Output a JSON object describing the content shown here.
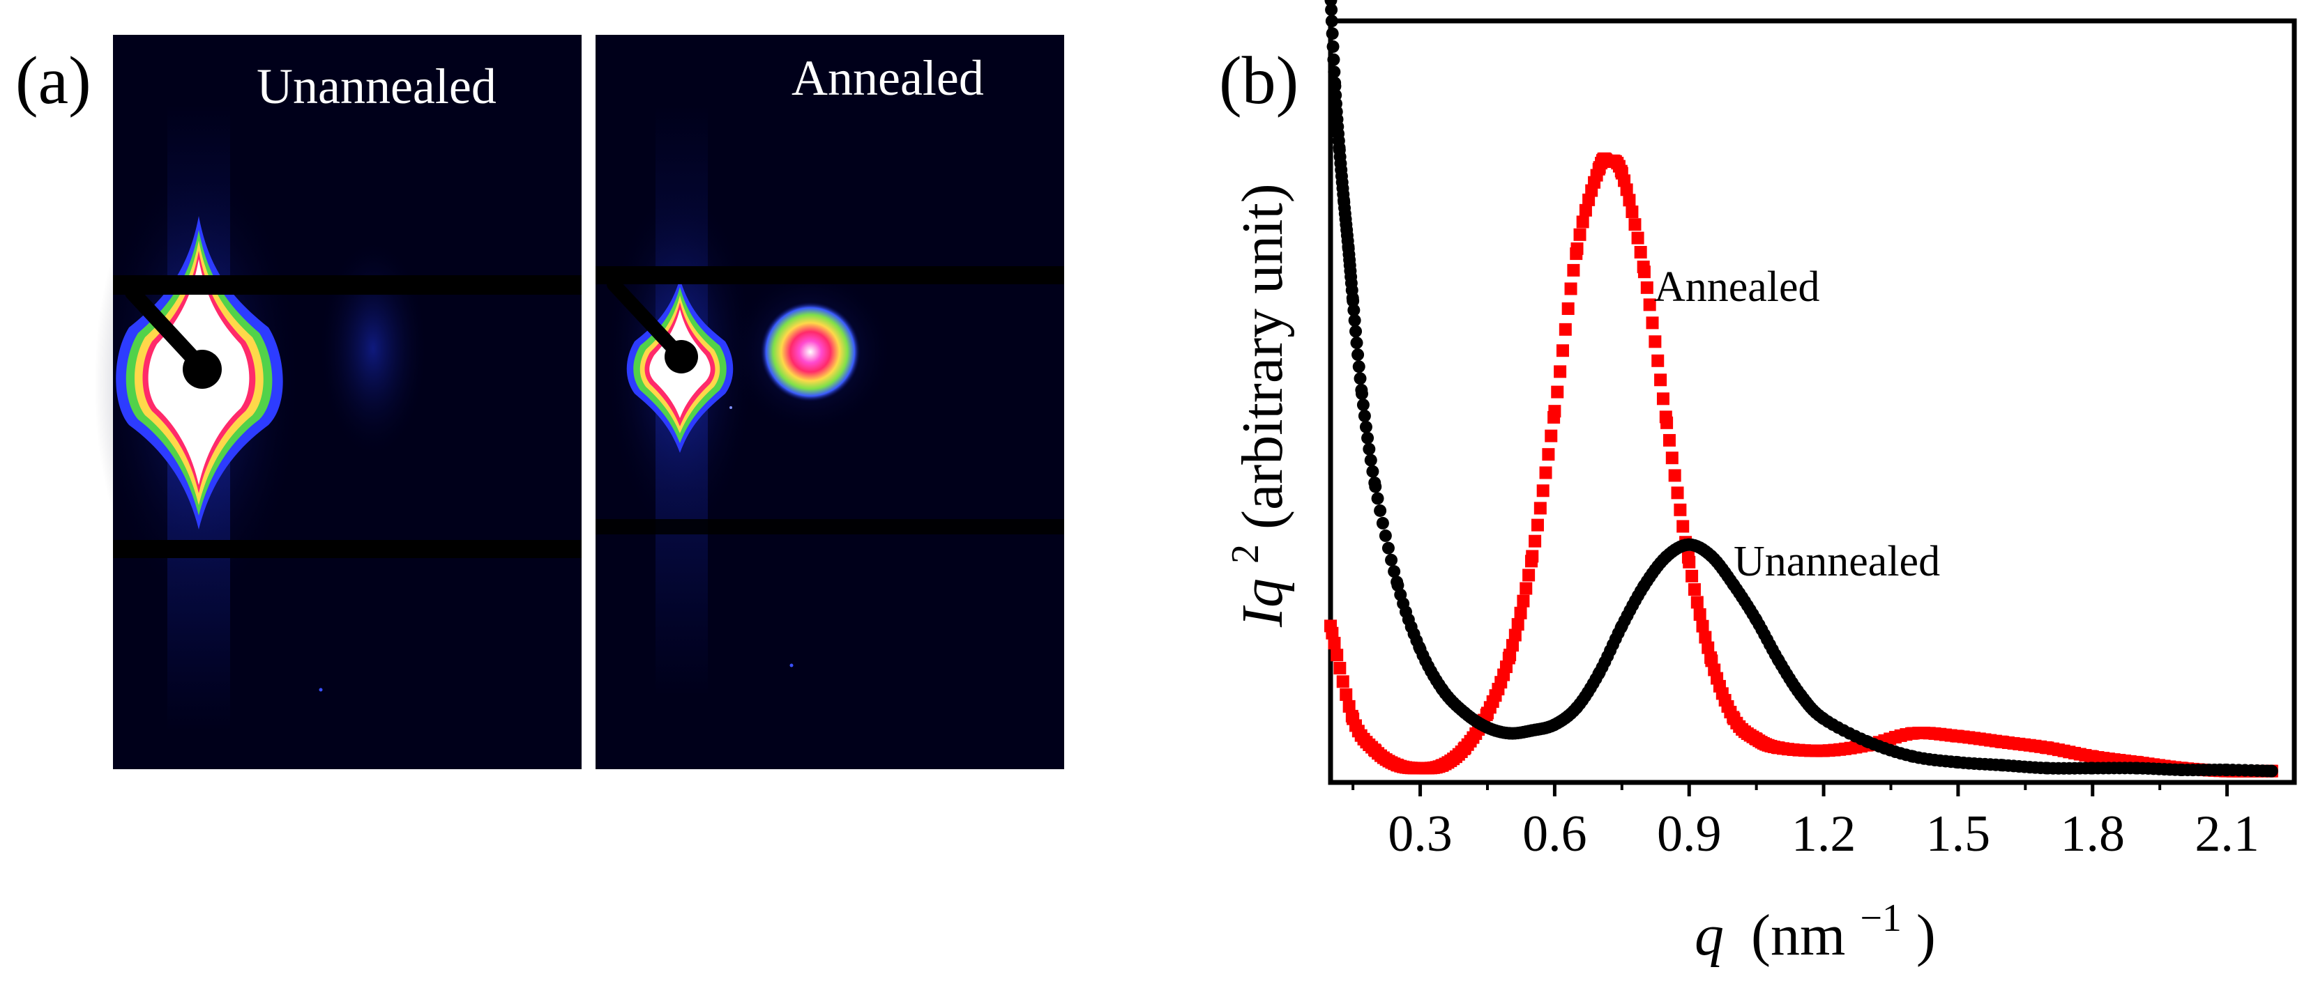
{
  "panel_a": {
    "label": "(a)",
    "left_image_title": "Unannealed",
    "right_image_title": "Annealed"
  },
  "panel_b": {
    "label": "(b)"
  },
  "chart_data": {
    "type": "scatter",
    "title": "",
    "xlabel": "q (nm−1)",
    "ylabel": "Iq² (arbitrary unit)",
    "xlabel_parts": {
      "var": "q",
      "unit": "(nm",
      "sup": "−1",
      "close": ")"
    },
    "ylabel_parts": {
      "var": "Iq",
      "sup": "2",
      "rest": " (arbitrary unit)"
    },
    "xlim": [
      0.1,
      2.25
    ],
    "ylim": [
      0,
      1.3
    ],
    "xticks": [
      0.3,
      0.6,
      0.9,
      1.2,
      1.5,
      1.8,
      2.1
    ],
    "xtick_labels": [
      "0.3",
      "0.6",
      "0.9",
      "1.2",
      "1.5",
      "1.8",
      "2.1"
    ],
    "y_ticks_labeled": false,
    "grid": false,
    "series": [
      {
        "name": "Annealed",
        "color": "#ff0000",
        "marker": "square",
        "x": [
          0.1,
          0.15,
          0.2,
          0.25,
          0.3,
          0.35,
          0.4,
          0.45,
          0.5,
          0.55,
          0.6,
          0.65,
          0.7,
          0.72,
          0.75,
          0.8,
          0.85,
          0.9,
          0.95,
          1.0,
          1.05,
          1.1,
          1.2,
          1.3,
          1.4,
          1.5,
          1.6,
          1.7,
          1.8,
          1.9,
          2.0,
          2.1,
          2.2
        ],
        "y": [
          0.26,
          0.1,
          0.045,
          0.02,
          0.015,
          0.02,
          0.05,
          0.11,
          0.21,
          0.38,
          0.63,
          0.91,
          1.05,
          1.06,
          1.04,
          0.87,
          0.61,
          0.37,
          0.2,
          0.1,
          0.065,
          0.05,
          0.045,
          0.055,
          0.075,
          0.07,
          0.06,
          0.05,
          0.035,
          0.025,
          0.015,
          0.01,
          0.01
        ]
      },
      {
        "name": "Unannealed",
        "color": "#000000",
        "marker": "circle",
        "x": [
          0.1,
          0.11,
          0.12,
          0.13,
          0.14,
          0.15,
          0.17,
          0.2,
          0.25,
          0.3,
          0.35,
          0.4,
          0.45,
          0.5,
          0.55,
          0.6,
          0.65,
          0.7,
          0.75,
          0.8,
          0.85,
          0.9,
          0.95,
          1.0,
          1.05,
          1.1,
          1.15,
          1.2,
          1.3,
          1.4,
          1.5,
          1.6,
          1.7,
          1.8,
          1.9,
          2.0,
          2.1,
          2.2
        ],
        "y": [
          1.35,
          1.19,
          1.08,
          0.99,
          0.91,
          0.82,
          0.66,
          0.5,
          0.33,
          0.22,
          0.15,
          0.11,
          0.085,
          0.075,
          0.08,
          0.09,
          0.12,
          0.18,
          0.26,
          0.33,
          0.38,
          0.4,
          0.38,
          0.33,
          0.27,
          0.2,
          0.14,
          0.1,
          0.06,
          0.035,
          0.025,
          0.02,
          0.015,
          0.015,
          0.015,
          0.012,
          0.012,
          0.01
        ]
      }
    ],
    "annotations": [
      {
        "text": "Annealed",
        "series": "Annealed"
      },
      {
        "text": "Unannealed",
        "series": "Unannealed"
      }
    ]
  }
}
